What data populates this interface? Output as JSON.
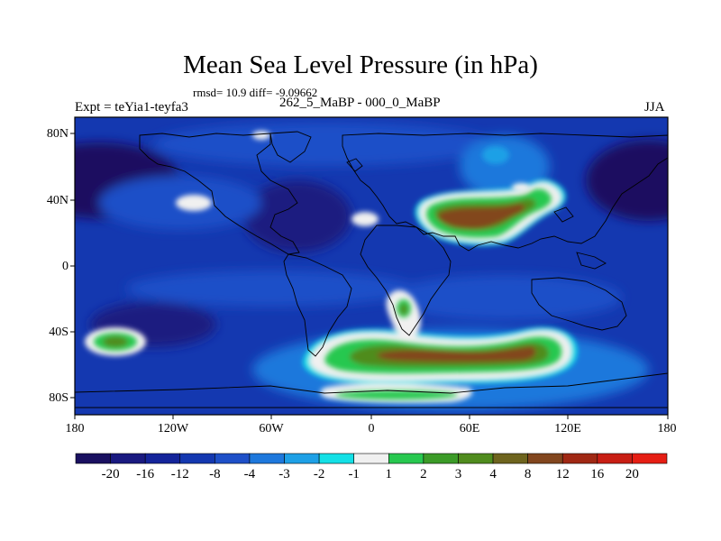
{
  "title": "Mean Sea Level Pressure (in hPa)",
  "stats": "rmsd= 10.9 diff= -9.09662",
  "subtitle": "262_5_MaBP - 000_0_MaBP",
  "experiment": "Expt = teYia1-teyfa3",
  "season": "JJA",
  "lat_ticks": [
    "80N",
    "40N",
    "0",
    "40S",
    "80S"
  ],
  "lon_ticks": [
    "180",
    "120W",
    "60W",
    "0",
    "60E",
    "120E",
    "180"
  ],
  "colorbar": {
    "labels": [
      "-20",
      "-16",
      "-12",
      "-8",
      "-4",
      "-3",
      "-2",
      "-1",
      "1",
      "2",
      "3",
      "4",
      "8",
      "12",
      "16",
      "20"
    ],
    "colors": [
      "#1a1060",
      "#1a1a80",
      "#14249a",
      "#1438b0",
      "#1e50c8",
      "#1e78dc",
      "#1ea0e6",
      "#14e0e6",
      "#f0f0f0",
      "#28c850",
      "#3c9b28",
      "#508c1e",
      "#6e641e",
      "#82461e",
      "#a02814",
      "#c81e14",
      "#e61e14"
    ]
  },
  "colors": {
    "ocean_base": "#1438b0",
    "strong_neg": "#1a1060",
    "moderate_neg": "#1e50c8",
    "weak_neg": "#1e78dc",
    "near_zero": "#f0f0f0",
    "pos_green": "#28c850",
    "pos_olive": "#508c1e",
    "pos_brown": "#82461e"
  }
}
